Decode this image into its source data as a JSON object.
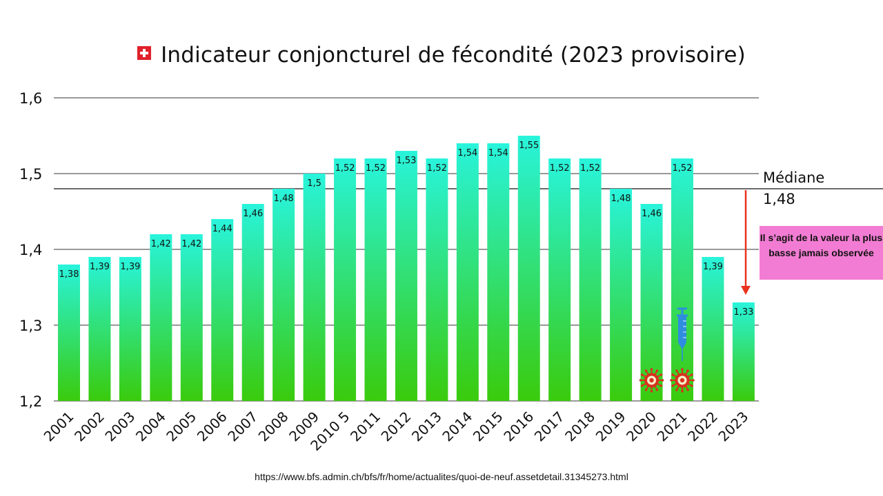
{
  "title": "Indicateur conjoncturel de fécondité (2023 provisoire)",
  "flag_icon": "swiss-flag-icon",
  "source_url": "https://www.bfs.admin.ch/bfs/fr/home/actualites/quoi-de-neuf.assetdetail.31345273.html",
  "colors": {
    "bar_top": "#29f4dc",
    "bar_bottom": "#3acb0c",
    "arrow": "#e8321e",
    "callout_bg": "#f27cd3",
    "flag_red": "#e0202a",
    "virus": "#d8321e",
    "syringe": "#2f8de0"
  },
  "chart_data": {
    "type": "bar",
    "title": "Indicateur conjoncturel de fécondité (2023 provisoire)",
    "categories": [
      "2001",
      "2002",
      "2003",
      "2004",
      "2005",
      "2006",
      "2007",
      "2008",
      "2009",
      "2010 5",
      "2011",
      "2012",
      "2013",
      "2014",
      "2015",
      "2016",
      "2017",
      "2018",
      "2019",
      "2020",
      "2021",
      "2022",
      "2023"
    ],
    "values": [
      1.38,
      1.39,
      1.39,
      1.42,
      1.42,
      1.44,
      1.46,
      1.48,
      1.5,
      1.52,
      1.52,
      1.53,
      1.52,
      1.54,
      1.54,
      1.55,
      1.52,
      1.52,
      1.48,
      1.46,
      1.52,
      1.39,
      1.33
    ],
    "value_labels": [
      "1,38",
      "1,39",
      "1,39",
      "1,42",
      "1,42",
      "1,44",
      "1,46",
      "1,48",
      "1,5",
      "1,52",
      "1,52",
      "1,53",
      "1,52",
      "1,54",
      "1,54",
      "1,55",
      "1,52",
      "1,52",
      "1,48",
      "1,46",
      "1,52",
      "1,39",
      "1,33"
    ],
    "ylim": [
      1.2,
      1.6
    ],
    "yticks": [
      1.2,
      1.3,
      1.4,
      1.5,
      1.6
    ],
    "ytick_labels": [
      "1,2",
      "1,3",
      "1,4",
      "1,5",
      "1,6"
    ],
    "grid": true,
    "xlabel": "",
    "ylabel": "",
    "median": {
      "value": 1.48,
      "label_line1": "Médiane",
      "label_line2": "1,48"
    },
    "annotations": {
      "callout_text": "Il s’agit de la valeur la plus basse jamais observée",
      "virus_icon_years": [
        "2020",
        "2021"
      ],
      "syringe_icon_year": "2021"
    }
  }
}
